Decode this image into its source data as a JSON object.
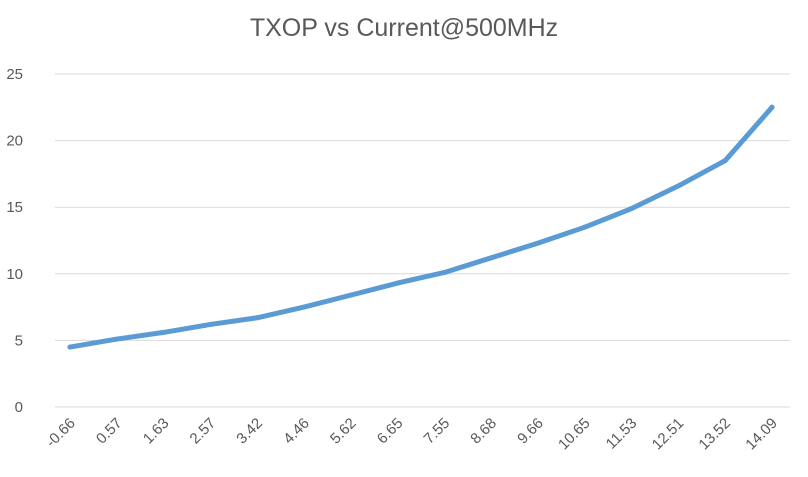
{
  "chart_data": {
    "type": "line",
    "title": "TXOP vs Current@500MHz",
    "xlabel": "",
    "ylabel": "",
    "categories": [
      "-0.66",
      "0.57",
      "1.63",
      "2.57",
      "3.42",
      "4.46",
      "5.62",
      "6.65",
      "7.55",
      "8.68",
      "9.66",
      "10.65",
      "11.53",
      "12.51",
      "13.52",
      "14.09"
    ],
    "series": [
      {
        "values": [
          4.5,
          5.1,
          5.6,
          6.2,
          6.7,
          7.5,
          8.4,
          9.3,
          10.1,
          11.2,
          12.3,
          13.5,
          14.9,
          16.6,
          18.5,
          22.5
        ]
      }
    ],
    "ylim": [
      0,
      25
    ],
    "yticks": [
      0,
      5,
      10,
      15,
      20,
      25
    ],
    "grid": true,
    "legend": "none",
    "colors": {
      "series": "#5b9bd5",
      "grid": "#d9d9d9",
      "text": "#595959"
    }
  }
}
